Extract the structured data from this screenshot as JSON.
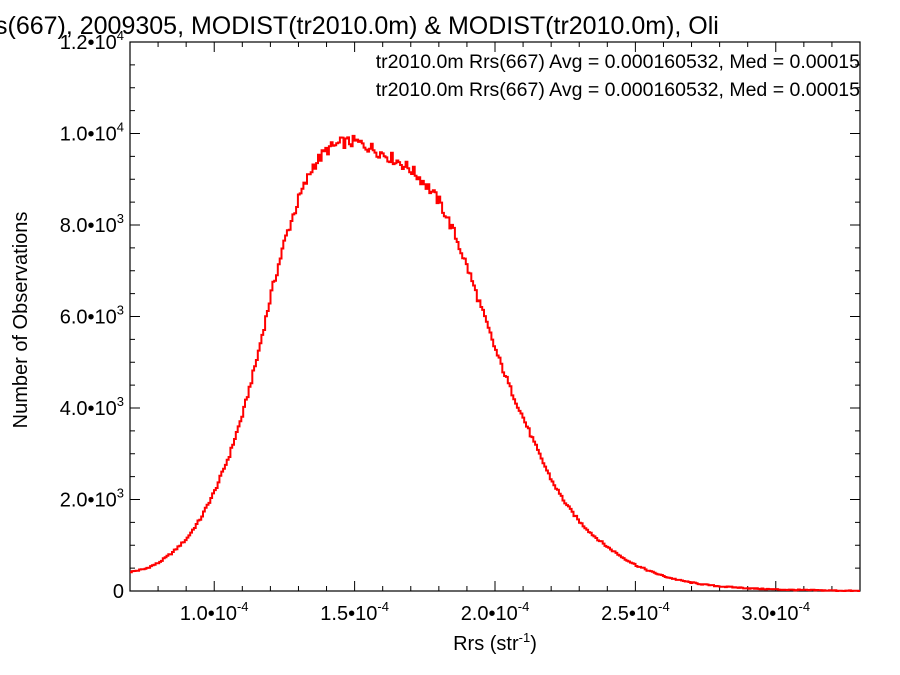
{
  "chart_data": {
    "type": "line",
    "title": "s(667), 2009305, MODIST(tr2010.0m) & MODIST(tr2010.0m), Oli",
    "xlabel": "Rrs (str",
    "xlabel_sup": "-1",
    "xlabel_close": ")",
    "ylabel": "Number of Observations",
    "xlim": [
      7e-05,
      0.00033
    ],
    "ylim": [
      0,
      12000
    ],
    "x_ticks": [
      {
        "value": 0.0001,
        "mant": "1.0•10",
        "exp": "-4"
      },
      {
        "value": 0.00015,
        "mant": "1.5•10",
        "exp": "-4"
      },
      {
        "value": 0.0002,
        "mant": "2.0•10",
        "exp": "-4"
      },
      {
        "value": 0.00025,
        "mant": "2.5•10",
        "exp": "-4"
      },
      {
        "value": 0.0003,
        "mant": "3.0•10",
        "exp": "-4"
      }
    ],
    "y_ticks": [
      {
        "value": 0,
        "mant": "0",
        "exp": ""
      },
      {
        "value": 2000,
        "mant": "2.0•10",
        "exp": "3"
      },
      {
        "value": 4000,
        "mant": "4.0•10",
        "exp": "3"
      },
      {
        "value": 6000,
        "mant": "6.0•10",
        "exp": "3"
      },
      {
        "value": 8000,
        "mant": "8.0•10",
        "exp": "3"
      },
      {
        "value": 10000,
        "mant": "1.0•10",
        "exp": "4"
      },
      {
        "value": 12000,
        "mant": "1.2•10",
        "exp": "4"
      }
    ],
    "legend": [
      {
        "text": "tr2010.0m Rrs(667) Avg = 0.000160532, Med = 0.00015",
        "color": "#000000"
      },
      {
        "text": "tr2010.0m Rrs(667) Avg = 0.000160532, Med = 0.00015",
        "color": "#ff0000"
      }
    ],
    "series": [
      {
        "color": "#ff0000",
        "x": [
          7e-05,
          7.5e-05,
          8e-05,
          8.5e-05,
          9e-05,
          9.5e-05,
          0.0001,
          0.000105,
          0.00011,
          0.000115,
          0.00012,
          0.000125,
          0.00013,
          0.000135,
          0.00014,
          0.000145,
          0.00015,
          0.000155,
          0.00016,
          0.000165,
          0.00017,
          0.000175,
          0.00018,
          0.000185,
          0.00019,
          0.000195,
          0.0002,
          0.000205,
          0.00021,
          0.000215,
          0.00022,
          0.000225,
          0.00023,
          0.000235,
          0.00024,
          0.000245,
          0.00025,
          0.000255,
          0.00026,
          0.000265,
          0.00027,
          0.000275,
          0.00028,
          0.000285,
          0.00029,
          0.000295,
          0.0003,
          0.000305,
          0.00031,
          0.000315,
          0.00032,
          0.000325,
          0.00033
        ],
        "y": [
          420,
          480,
          620,
          850,
          1150,
          1600,
          2200,
          2950,
          3900,
          5100,
          6500,
          7700,
          8600,
          9300,
          9650,
          9800,
          9820,
          9700,
          9550,
          9400,
          9200,
          8900,
          8500,
          7850,
          7050,
          6150,
          5250,
          4450,
          3750,
          3050,
          2400,
          1900,
          1500,
          1200,
          950,
          740,
          560,
          430,
          320,
          240,
          180,
          135,
          100,
          80,
          60,
          45,
          35,
          25,
          20,
          15,
          10,
          5,
          0
        ]
      }
    ]
  }
}
